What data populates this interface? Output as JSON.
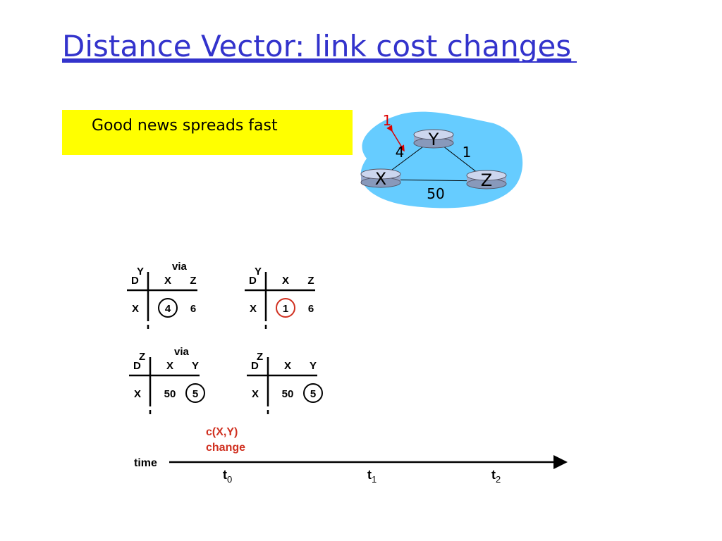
{
  "title": "Distance Vector: link cost changes",
  "callout": "Good news spreads fast",
  "network": {
    "nodes": [
      "X",
      "Y",
      "Z"
    ],
    "link_costs": {
      "x_y": "4",
      "y_z": "1",
      "x_z": "50",
      "x_y_new": "1"
    }
  },
  "tables": [
    {
      "owner": "Y",
      "via": "via",
      "corner": "D",
      "columns": [
        "X",
        "Z"
      ],
      "row_label": "X",
      "values": [
        "4",
        "6"
      ]
    },
    {
      "owner": "Y",
      "corner": "D",
      "columns": [
        "X",
        "Z"
      ],
      "row_label": "X",
      "values": [
        "1",
        "6"
      ]
    },
    {
      "owner": "Z",
      "via": "via",
      "corner": "D",
      "columns": [
        "X",
        "Y"
      ],
      "row_label": "X",
      "values": [
        "50",
        "5"
      ]
    },
    {
      "owner": "Z",
      "corner": "D",
      "columns": [
        "X",
        "Y"
      ],
      "row_label": "X",
      "values": [
        "50",
        "5"
      ]
    }
  ],
  "timeline": {
    "axis_label": "time",
    "event": [
      "c(X,Y)",
      "change"
    ],
    "ticks": [
      {
        "base": "t",
        "sub": "0"
      },
      {
        "base": "t",
        "sub": "1"
      },
      {
        "base": "t",
        "sub": "2"
      }
    ]
  }
}
